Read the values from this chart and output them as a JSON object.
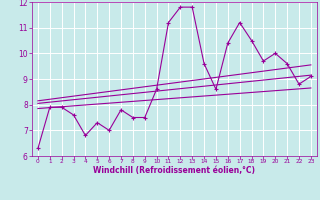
{
  "x": [
    0,
    1,
    2,
    3,
    4,
    5,
    6,
    7,
    8,
    9,
    10,
    11,
    12,
    13,
    14,
    15,
    16,
    17,
    18,
    19,
    20,
    21,
    22,
    23
  ],
  "y_main": [
    6.3,
    7.9,
    7.9,
    7.6,
    6.8,
    7.3,
    7.0,
    7.8,
    7.5,
    7.5,
    8.6,
    11.2,
    11.8,
    11.8,
    9.6,
    8.6,
    10.4,
    11.2,
    10.5,
    9.7,
    10.0,
    9.6,
    8.8,
    9.1
  ],
  "trend1_x": [
    0,
    23
  ],
  "trend1_y": [
    7.85,
    8.65
  ],
  "trend2_x": [
    0,
    23
  ],
  "trend2_y": [
    8.05,
    9.15
  ],
  "trend3_x": [
    0,
    23
  ],
  "trend3_y": [
    8.15,
    9.55
  ],
  "line_color": "#990099",
  "bg_color": "#c8eaea",
  "grid_color": "#ffffff",
  "xlabel": "Windchill (Refroidissement éolien,°C)",
  "xlim": [
    -0.5,
    23.5
  ],
  "ylim": [
    6,
    12
  ],
  "yticks": [
    6,
    7,
    8,
    9,
    10,
    11,
    12
  ],
  "xticks": [
    0,
    1,
    2,
    3,
    4,
    5,
    6,
    7,
    8,
    9,
    10,
    11,
    12,
    13,
    14,
    15,
    16,
    17,
    18,
    19,
    20,
    21,
    22,
    23
  ]
}
